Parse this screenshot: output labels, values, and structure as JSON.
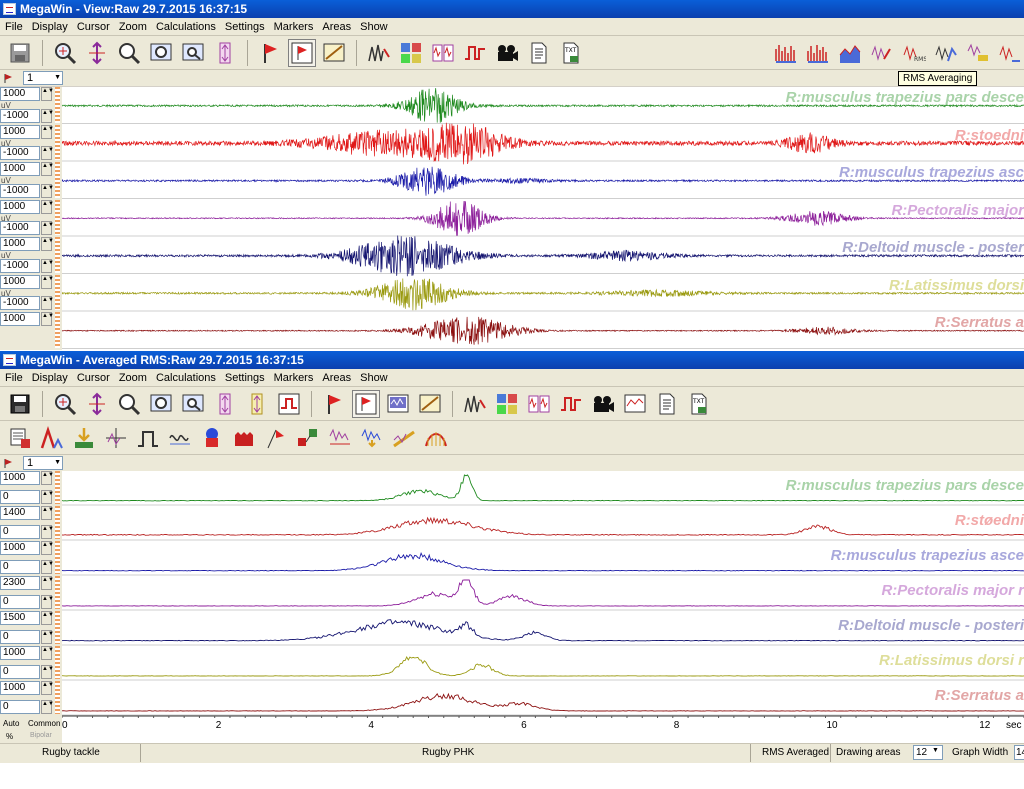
{
  "window1": {
    "title": "MegaWin - View:Raw 29.7.2015 16:37:15",
    "menu": [
      "File",
      "Display",
      "Cursor",
      "Zoom",
      "Calculations",
      "Settings",
      "Markers",
      "Areas",
      "Show"
    ],
    "tooltip": "RMS Averaging",
    "selector_value": "1",
    "channels": [
      {
        "max": "1000",
        "min": "-1000",
        "unit": "uV",
        "label": "R:musculus trapezius pars desce",
        "color": "#1e8a1e",
        "label_color": "#a9d3a9"
      },
      {
        "max": "1000",
        "min": "-1000",
        "unit": "uV",
        "label": "R:stoedni",
        "color": "#e01818",
        "label_color": "#f2a9a9"
      },
      {
        "max": "1000",
        "min": "-1000",
        "unit": "uV",
        "label": "R:musculus trapezius asc",
        "color": "#1a1aa8",
        "label_color": "#a8a8dc"
      },
      {
        "max": "1000",
        "min": "-1000",
        "unit": "uV",
        "label": "R:Pectoralis major",
        "color": "#8c1e9a",
        "label_color": "#d5a8dc"
      },
      {
        "max": "1000",
        "min": "-1000",
        "unit": "uV",
        "label": "R:Deltoid muscle - poster",
        "color": "#141470",
        "label_color": "#a8a8cf"
      },
      {
        "max": "1000",
        "min": "-1000",
        "unit": "uV",
        "label": "R:Latissimus dorsi",
        "color": "#9a9a10",
        "label_color": "#dede9a"
      },
      {
        "max": "1000",
        "min": "",
        "unit": "",
        "label": "R:Serratus a",
        "color": "#8c1010",
        "label_color": "#e2a6a6"
      }
    ]
  },
  "window2": {
    "title": "MegaWin - Averaged RMS:Raw 29.7.2015 16:37:15",
    "menu": [
      "File",
      "Display",
      "Cursor",
      "Zoom",
      "Calculations",
      "Settings",
      "Markers",
      "Areas",
      "Show"
    ],
    "selector_value": "1",
    "channels": [
      {
        "max": "1000",
        "min": "0",
        "label": "R:musculus trapezius pars desce",
        "color": "#1e8a1e",
        "label_color": "#a9d3a9"
      },
      {
        "max": "1400",
        "min": "0",
        "label": "R:støedni",
        "color": "#b82222",
        "label_color": "#f2a9a9"
      },
      {
        "max": "1000",
        "min": "0",
        "label": "R:musculus trapezius asce",
        "color": "#1a1aa8",
        "label_color": "#a8a8dc"
      },
      {
        "max": "2300",
        "min": "0",
        "label": "R:Pectoralis major r",
        "color": "#8c1e9a",
        "label_color": "#d5a8dc"
      },
      {
        "max": "1500",
        "min": "0",
        "label": "R:Deltoid muscle - posteri",
        "color": "#141470",
        "label_color": "#a8a8cf"
      },
      {
        "max": "1000",
        "min": "0",
        "label": "R:Latissimus dorsi r",
        "color": "#9a9a10",
        "label_color": "#dede9a"
      },
      {
        "max": "1000",
        "min": "0",
        "label": "R:Serratus a",
        "color": "#8c1010",
        "label_color": "#e2a6a6"
      }
    ],
    "xaxis": {
      "ticks": [
        "0",
        "2",
        "4",
        "6",
        "8",
        "10",
        "12"
      ],
      "unit": "sec",
      "auto_label": "Auto",
      "common_label": "Common",
      "percent_label": "%",
      "bipolar_label": "Bipolar"
    }
  },
  "statusbar": {
    "left": "Rugby tackle",
    "center": "Rugby PHK",
    "mode": "RMS Averaged",
    "drawing_areas_label": "Drawing areas",
    "drawing_areas_value": "12",
    "graph_width_label": "Graph Width",
    "graph_width_value": "14"
  }
}
